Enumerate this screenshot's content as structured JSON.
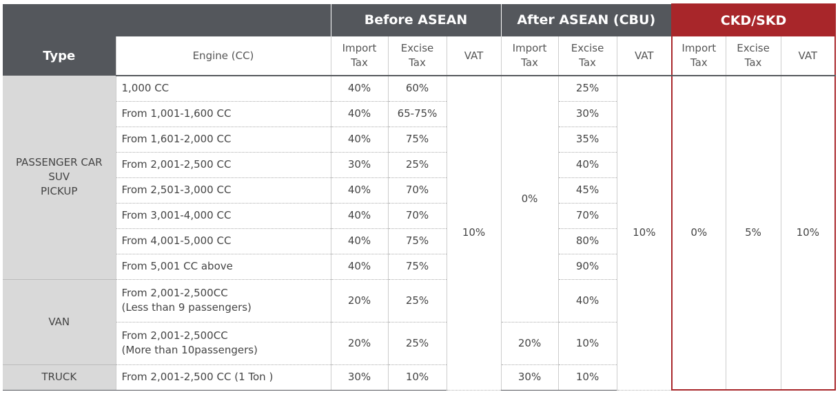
{
  "table": {
    "groups": [
      "Before ASEAN",
      "After ASEAN (CBU)",
      "CKD/SKD"
    ],
    "columns": {
      "type": "Type",
      "engine": "Engine (CC)",
      "import": "Import\nTax",
      "excise": "Excise\nTax",
      "vat": "VAT"
    },
    "types": [
      "PASSENGER CAR\nSUV\nPICKUP",
      "VAN",
      "TRUCK"
    ],
    "engines": [
      "1,000 CC",
      "From 1,001-1,600 CC",
      "From 1,601-2,000 CC",
      "From 2,001-2,500 CC",
      "From 2,501-3,000 CC",
      "From 3,001-4,000 CC",
      "From 4,001-5,000 CC",
      "From 5,001 CC above",
      "From 2,001-2,500CC\n(Less than 9 passengers)",
      "From 2,001-2,500CC\n(More than 10passengers)",
      "From 2,001-2,500 CC (1 Ton )"
    ],
    "before_asean": {
      "import": [
        "40%",
        "40%",
        "40%",
        "30%",
        "40%",
        "40%",
        "40%",
        "40%",
        "20%",
        "20%",
        "30%"
      ],
      "excise": [
        "60%",
        "65-75%",
        "75%",
        "25%",
        "70%",
        "70%",
        "75%",
        "75%",
        "25%",
        "25%",
        "10%"
      ],
      "vat": "10%"
    },
    "after_asean": {
      "import": [
        "0%",
        "20%",
        "30%"
      ],
      "excise": [
        "25%",
        "30%",
        "35%",
        "40%",
        "45%",
        "70%",
        "80%",
        "90%",
        "40%",
        "10%",
        "10%"
      ],
      "vat": "10%"
    },
    "ckd_skd": {
      "import": "0%",
      "excise": "5%",
      "vat": "10%"
    }
  }
}
